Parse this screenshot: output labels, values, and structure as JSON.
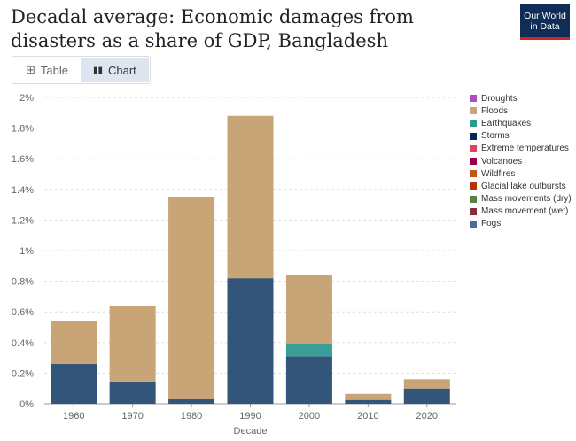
{
  "title": "Decadal average: Economic damages from disasters as a share of GDP, Bangladesh",
  "logo": {
    "line1": "Our World",
    "line2": "in Data"
  },
  "tabs": {
    "table": "Table",
    "chart": "Chart"
  },
  "chart_data": {
    "type": "bar",
    "stacked": true,
    "title": "Decadal average: Economic damages from disasters as a share of GDP, Bangladesh",
    "xlabel": "Decade",
    "ylabel": "",
    "ylim": [
      0,
      2
    ],
    "yticks": [
      0,
      0.2,
      0.4,
      0.6,
      0.8,
      1,
      1.2,
      1.4,
      1.6,
      1.8,
      2
    ],
    "ytick_labels": [
      "0%",
      "0.2%",
      "0.4%",
      "0.6%",
      "0.8%",
      "1%",
      "1.2%",
      "1.4%",
      "1.6%",
      "1.8%",
      "2%"
    ],
    "categories": [
      "1960",
      "1970",
      "1980",
      "1990",
      "2000",
      "2010",
      "2020"
    ],
    "series": [
      {
        "name": "Storms",
        "color": "#34557a",
        "values": [
          0.26,
          0.145,
          0.03,
          0.82,
          0.31,
          0.025,
          0.1
        ]
      },
      {
        "name": "Earthquakes",
        "color": "#3a9e99",
        "values": [
          0,
          0,
          0,
          0,
          0.08,
          0,
          0
        ]
      },
      {
        "name": "Floods",
        "color": "#c9a476",
        "values": [
          0.28,
          0.495,
          1.32,
          1.06,
          0.45,
          0.04,
          0.06
        ]
      }
    ],
    "legend": [
      {
        "name": "Droughts",
        "color": "#a652ba"
      },
      {
        "name": "Floods",
        "color": "#c9a476"
      },
      {
        "name": "Earthquakes",
        "color": "#2a9c8e"
      },
      {
        "name": "Storms",
        "color": "#00295b"
      },
      {
        "name": "Extreme temperatures",
        "color": "#e5405f"
      },
      {
        "name": "Volcanoes",
        "color": "#970046"
      },
      {
        "name": "Wildfires",
        "color": "#c05917"
      },
      {
        "name": "Glacial lake outbursts",
        "color": "#b13507"
      },
      {
        "name": "Mass movements (dry)",
        "color": "#578145"
      },
      {
        "name": "Mass movement (wet)",
        "color": "#883039"
      },
      {
        "name": "Fogs",
        "color": "#4c6a9c"
      }
    ],
    "legend_position": "right",
    "grid": true
  }
}
